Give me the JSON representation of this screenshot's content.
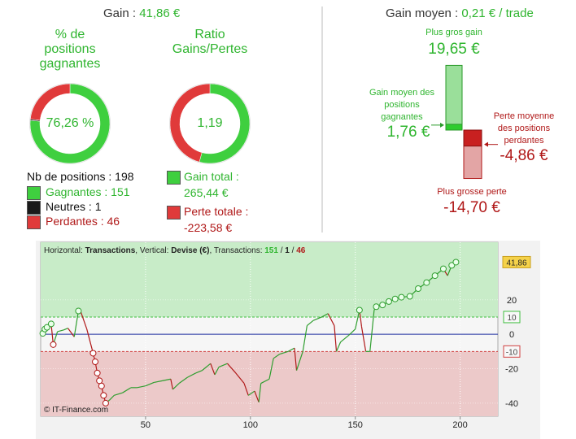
{
  "left_panel": {
    "gain_label": "Gain : ",
    "gain_value": "41,86 €",
    "win_rate": {
      "title": "% de positions gagnantes",
      "value": "76,26 %"
    },
    "ratio": {
      "title": "Ratio Gains/Pertes",
      "value": "1,19"
    },
    "positions": {
      "label": "Nb de positions : ",
      "count": 198
    },
    "breakdown": [
      {
        "label": "Gagnantes : ",
        "count": 151,
        "color": "#3fcf3f"
      },
      {
        "label": "Neutres : ",
        "count": 1,
        "color": "#1a1a1a"
      },
      {
        "label": "Perdantes : ",
        "count": 46,
        "color": "#e03a3a"
      }
    ],
    "totals": [
      {
        "label": "Gain total :",
        "value": 265.44,
        "value_label": "265,44 €",
        "color": "#3fcf3f"
      },
      {
        "label": "Perte totale :",
        "value": -223.58,
        "value_label": "-223,58 €",
        "color": "#e03a3a"
      }
    ]
  },
  "right_panel": {
    "title": "Gain moyen : ",
    "value": "0,21 € / trade",
    "items": [
      {
        "label": "Plus gros gain",
        "value": 19.65,
        "value_label": "19,65 €"
      },
      {
        "label": "Gain moyen des positions gagnantes",
        "value": 1.76,
        "value_label": "1,76 €"
      },
      {
        "label": "Perte moyenne des positions perdantes",
        "value": -4.86,
        "value_label": "-4,86 €"
      },
      {
        "label": "Plus grosse perte",
        "value": -14.7,
        "value_label": "-14,70 €"
      }
    ]
  },
  "chart_data": {
    "type": "line",
    "caption": [
      "Horizontal: ",
      "Transactions",
      ", Vertical: ",
      "Devise (€)",
      ", Transactions: ",
      " / "
    ],
    "copyright": "© IT-Finance.com",
    "x": [
      1,
      2,
      3,
      5,
      6,
      8,
      11,
      13,
      16,
      18,
      19,
      22,
      25,
      26,
      27,
      28,
      29,
      30,
      31,
      33,
      35,
      39,
      43,
      46,
      50,
      54,
      58,
      62,
      63,
      66,
      70,
      74,
      77,
      81,
      83,
      85,
      89,
      93,
      97,
      99,
      102,
      104,
      105,
      109,
      111,
      114,
      118,
      121,
      122,
      125,
      127,
      130,
      134,
      137,
      140,
      141,
      143,
      147,
      150,
      152,
      153,
      155,
      157,
      159,
      160,
      163,
      166,
      169,
      172,
      176,
      180,
      184,
      188,
      192,
      194,
      196,
      198
    ],
    "values": [
      0.5,
      3,
      4,
      6,
      -6,
      1.5,
      2.5,
      3.5,
      -1.5,
      13.5,
      13.5,
      3,
      -11,
      -16,
      -22.5,
      -27,
      -30,
      -35.5,
      -40,
      -38,
      -35.5,
      -34,
      -31,
      -31,
      -30,
      -28,
      -27,
      -26,
      -32,
      -28.5,
      -25,
      -22.5,
      -21,
      -17,
      -23.5,
      -19,
      -17,
      -22.5,
      -28.5,
      -35.5,
      -33,
      -39.5,
      -28.5,
      -26,
      -14,
      -11.5,
      -10,
      -8,
      -21,
      -10,
      5,
      8,
      10,
      12,
      5,
      -10,
      -4.5,
      -0.5,
      3,
      14,
      4.5,
      -10,
      -10,
      14,
      16,
      17,
      19,
      20.5,
      21.5,
      22,
      26.5,
      30,
      34,
      38,
      34,
      40,
      41.86
    ],
    "last_value_label": "41,86",
    "up_color": "#2f9e2f",
    "down_color": "#b01818",
    "xlim": [
      0,
      218
    ],
    "ylim": [
      -47.6,
      53.4
    ],
    "xticks": [
      50,
      100,
      150,
      200
    ],
    "yticks": [
      -40,
      -20,
      0,
      20
    ],
    "thresholds": [
      10,
      -10
    ],
    "grid": true
  }
}
